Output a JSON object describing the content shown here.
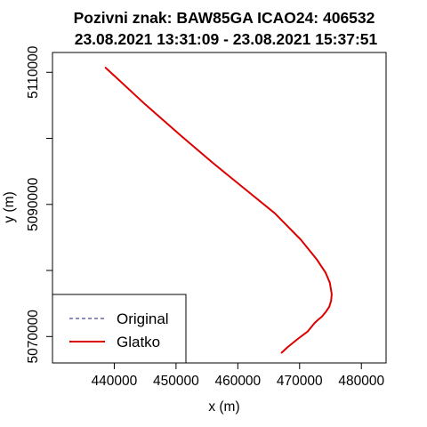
{
  "chart_data": {
    "type": "line",
    "title_line1": "Pozivni znak: BAW85GA  ICAO24: 406532",
    "title_line2": "23.08.2021 13:31:09 - 23.08.2021 15:37:51",
    "xlabel": "x (m)",
    "ylabel": "y (m)",
    "xlim": [
      430000,
      484000
    ],
    "ylim": [
      5066000,
      5113000
    ],
    "x_ticks": [
      440000,
      450000,
      460000,
      470000,
      480000
    ],
    "x_tick_labels": [
      "440000",
      "450000",
      "460000",
      "470000",
      "480000"
    ],
    "y_ticks": [
      5070000,
      5090000,
      5110000
    ],
    "y_tick_labels": [
      "5070000",
      "5090000",
      "5110000"
    ],
    "y_minor_ticks": [
      5080000,
      5100000
    ],
    "grid": false,
    "legend": {
      "position": "bottom-left",
      "entries": [
        {
          "label": "Original",
          "color": "#1a1a80",
          "style": "dashed"
        },
        {
          "label": "Glatko",
          "color": "#dd0000",
          "style": "solid"
        }
      ]
    },
    "series": [
      {
        "name": "Original",
        "color": "#1a1a80",
        "style": "dashed",
        "x": [
          438600,
          445000,
          451000,
          456000,
          461000,
          466000,
          470200,
          472800,
          474200,
          474900,
          475200,
          475100,
          474800,
          474300,
          473600,
          473000,
          472400,
          471300,
          470000,
          468800,
          468000,
          467100
        ],
        "y": [
          5110700,
          5105150,
          5100250,
          5096250,
          5092450,
          5088650,
          5084650,
          5081650,
          5079700,
          5078150,
          5076400,
          5075400,
          5074500,
          5073800,
          5073000,
          5072550,
          5072000,
          5070750,
          5069850,
          5068950,
          5068350,
          5067550
        ]
      },
      {
        "name": "Glatko",
        "color": "#dd0000",
        "style": "solid",
        "x": [
          438600,
          445000,
          451000,
          456000,
          461000,
          466000,
          470200,
          472800,
          474200,
          474900,
          475200,
          475100,
          474800,
          474300,
          473600,
          473000,
          472400,
          471300,
          470000,
          468800,
          468000,
          467100
        ],
        "y": [
          5110700,
          5105150,
          5100250,
          5096250,
          5092450,
          5088650,
          5084650,
          5081650,
          5079700,
          5078150,
          5076400,
          5075400,
          5074500,
          5073800,
          5073000,
          5072550,
          5072000,
          5070750,
          5069850,
          5068950,
          5068350,
          5067550
        ]
      }
    ]
  }
}
